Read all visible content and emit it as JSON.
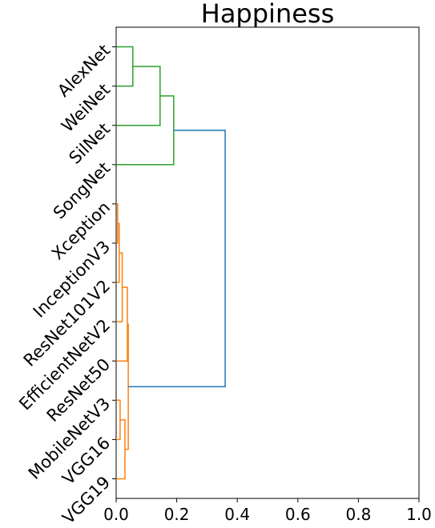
{
  "chart_data": {
    "type": "dendrogram",
    "title": "Happiness",
    "leaves": [
      "AlexNet",
      "WeiNet",
      "SilNet",
      "SongNet",
      "Xception",
      "InceptionV3",
      "ResNet101V2",
      "EfficientNetV2",
      "ResNet50",
      "MobileNetV3",
      "VGG16",
      "VGG19"
    ],
    "links": [
      {
        "left": 0,
        "right": 1,
        "height": 0.055,
        "color": "#2ca02c"
      },
      {
        "left": 12,
        "right": 2,
        "height": 0.145,
        "color": "#2ca02c"
      },
      {
        "left": 13,
        "right": 3,
        "height": 0.19,
        "color": "#2ca02c"
      },
      {
        "left": 4,
        "right": 5,
        "height": 0.005,
        "color": "#ff7f0e"
      },
      {
        "left": 15,
        "right": 6,
        "height": 0.01,
        "color": "#ff7f0e"
      },
      {
        "left": 16,
        "right": 7,
        "height": 0.02,
        "color": "#ff7f0e"
      },
      {
        "left": 17,
        "right": 8,
        "height": 0.037,
        "color": "#ff7f0e"
      },
      {
        "left": 9,
        "right": 10,
        "height": 0.013,
        "color": "#ff7f0e"
      },
      {
        "left": 19,
        "right": 11,
        "height": 0.029,
        "color": "#ff7f0e"
      },
      {
        "left": 18,
        "right": 20,
        "height": 0.04,
        "color": "#ff7f0e"
      },
      {
        "left": 14,
        "right": 21,
        "height": 0.36,
        "color": "#1f77b4"
      }
    ],
    "xlim": [
      0,
      1
    ],
    "xticks": [
      {
        "value": 0,
        "label": "0.0"
      },
      0.2,
      0.4,
      0.6,
      0.8,
      {
        "value": 1,
        "label": "1.0"
      }
    ]
  }
}
